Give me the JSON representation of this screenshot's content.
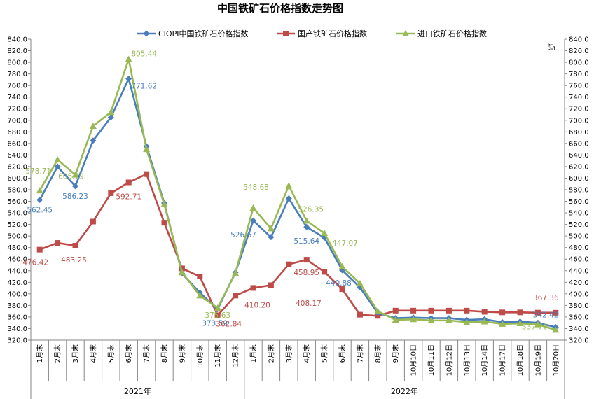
{
  "chart_data": {
    "type": "line",
    "title": "中国铁矿石价格指数走势图",
    "right_axis_unit": "点",
    "ylim": [
      320,
      840
    ],
    "y_step": 20,
    "grid": false,
    "legend_position": "top",
    "groups": [
      {
        "label": "2021年",
        "start": 0,
        "end": 11
      },
      {
        "label": "2022年",
        "start": 12,
        "end": 29
      }
    ],
    "categories": [
      "1月末",
      "2月末",
      "3月末",
      "4月末",
      "5月末",
      "6月末",
      "7月末",
      "8月末",
      "9月末",
      "10月末",
      "11月末",
      "12月末",
      "1月末",
      "2月末",
      "3月末",
      "4月末",
      "5月末",
      "6月末",
      "7月末",
      "8月末",
      "9月末",
      "10月10日",
      "10月11日",
      "10月12日",
      "10月13日",
      "10月14日",
      "10月17日",
      "10月18日",
      "10月19日",
      "10月20日"
    ],
    "series": [
      {
        "name": "CIOPI中国铁矿石价格指数",
        "color": "#4a7ebb",
        "marker": "diamond",
        "values": [
          562.45,
          620,
          586.23,
          665,
          705,
          771.62,
          655,
          557,
          435,
          402,
          373.59,
          437,
          526.67,
          498,
          565,
          515.64,
          497,
          440.88,
          411,
          367,
          358,
          359,
          358,
          358,
          355,
          356,
          351,
          352,
          350,
          342.42
        ]
      },
      {
        "name": "国产铁矿石价格指数",
        "color": "#be4b48",
        "marker": "square",
        "values": [
          476.42,
          488,
          483.25,
          525,
          574,
          592.71,
          607,
          523,
          444,
          430,
          362.84,
          397,
          410.2,
          415,
          451,
          458.95,
          438,
          408.17,
          364,
          362,
          371,
          371,
          371,
          371,
          371,
          369,
          368,
          368,
          367.5,
          367.36
        ]
      },
      {
        "name": "进口铁矿石价格指数",
        "color": "#98b954",
        "marker": "triangle",
        "values": [
          578.71,
          632,
          605.79,
          690,
          714,
          805.44,
          650,
          555,
          437,
          397,
          375.63,
          436,
          548.68,
          513,
          587,
          526.35,
          505,
          447.07,
          418,
          370,
          355,
          356,
          354,
          354,
          351,
          352,
          348,
          349,
          347,
          337.7
        ]
      }
    ],
    "data_labels": [
      {
        "series": 0,
        "index": 0,
        "text": "562.45"
      },
      {
        "series": 0,
        "index": 2,
        "text": "586.23"
      },
      {
        "series": 0,
        "index": 5,
        "text": "771.62"
      },
      {
        "series": 0,
        "index": 10,
        "text": "373.59"
      },
      {
        "series": 0,
        "index": 12,
        "text": "526.67"
      },
      {
        "series": 0,
        "index": 15,
        "text": "515.64"
      },
      {
        "series": 0,
        "index": 17,
        "text": "440.88"
      },
      {
        "series": 0,
        "index": 29,
        "text": "342.42"
      },
      {
        "series": 1,
        "index": 0,
        "text": "476.42"
      },
      {
        "series": 1,
        "index": 2,
        "text": "483.25"
      },
      {
        "series": 1,
        "index": 5,
        "text": "592.71"
      },
      {
        "series": 1,
        "index": 10,
        "text": "362.84"
      },
      {
        "series": 1,
        "index": 12,
        "text": "410.20"
      },
      {
        "series": 1,
        "index": 15,
        "text": "458.95"
      },
      {
        "series": 1,
        "index": 17,
        "text": "408.17"
      },
      {
        "series": 1,
        "index": 29,
        "text": "367.36"
      },
      {
        "series": 2,
        "index": 0,
        "text": "578.71"
      },
      {
        "series": 2,
        "index": 2,
        "text": "605.79"
      },
      {
        "series": 2,
        "index": 5,
        "text": "805.44"
      },
      {
        "series": 2,
        "index": 10,
        "text": "375.63"
      },
      {
        "series": 2,
        "index": 12,
        "text": "548.68"
      },
      {
        "series": 2,
        "index": 15,
        "text": "526.35"
      },
      {
        "series": 2,
        "index": 17,
        "text": "447.07"
      },
      {
        "series": 2,
        "index": 29,
        "text": "337.70"
      }
    ]
  }
}
